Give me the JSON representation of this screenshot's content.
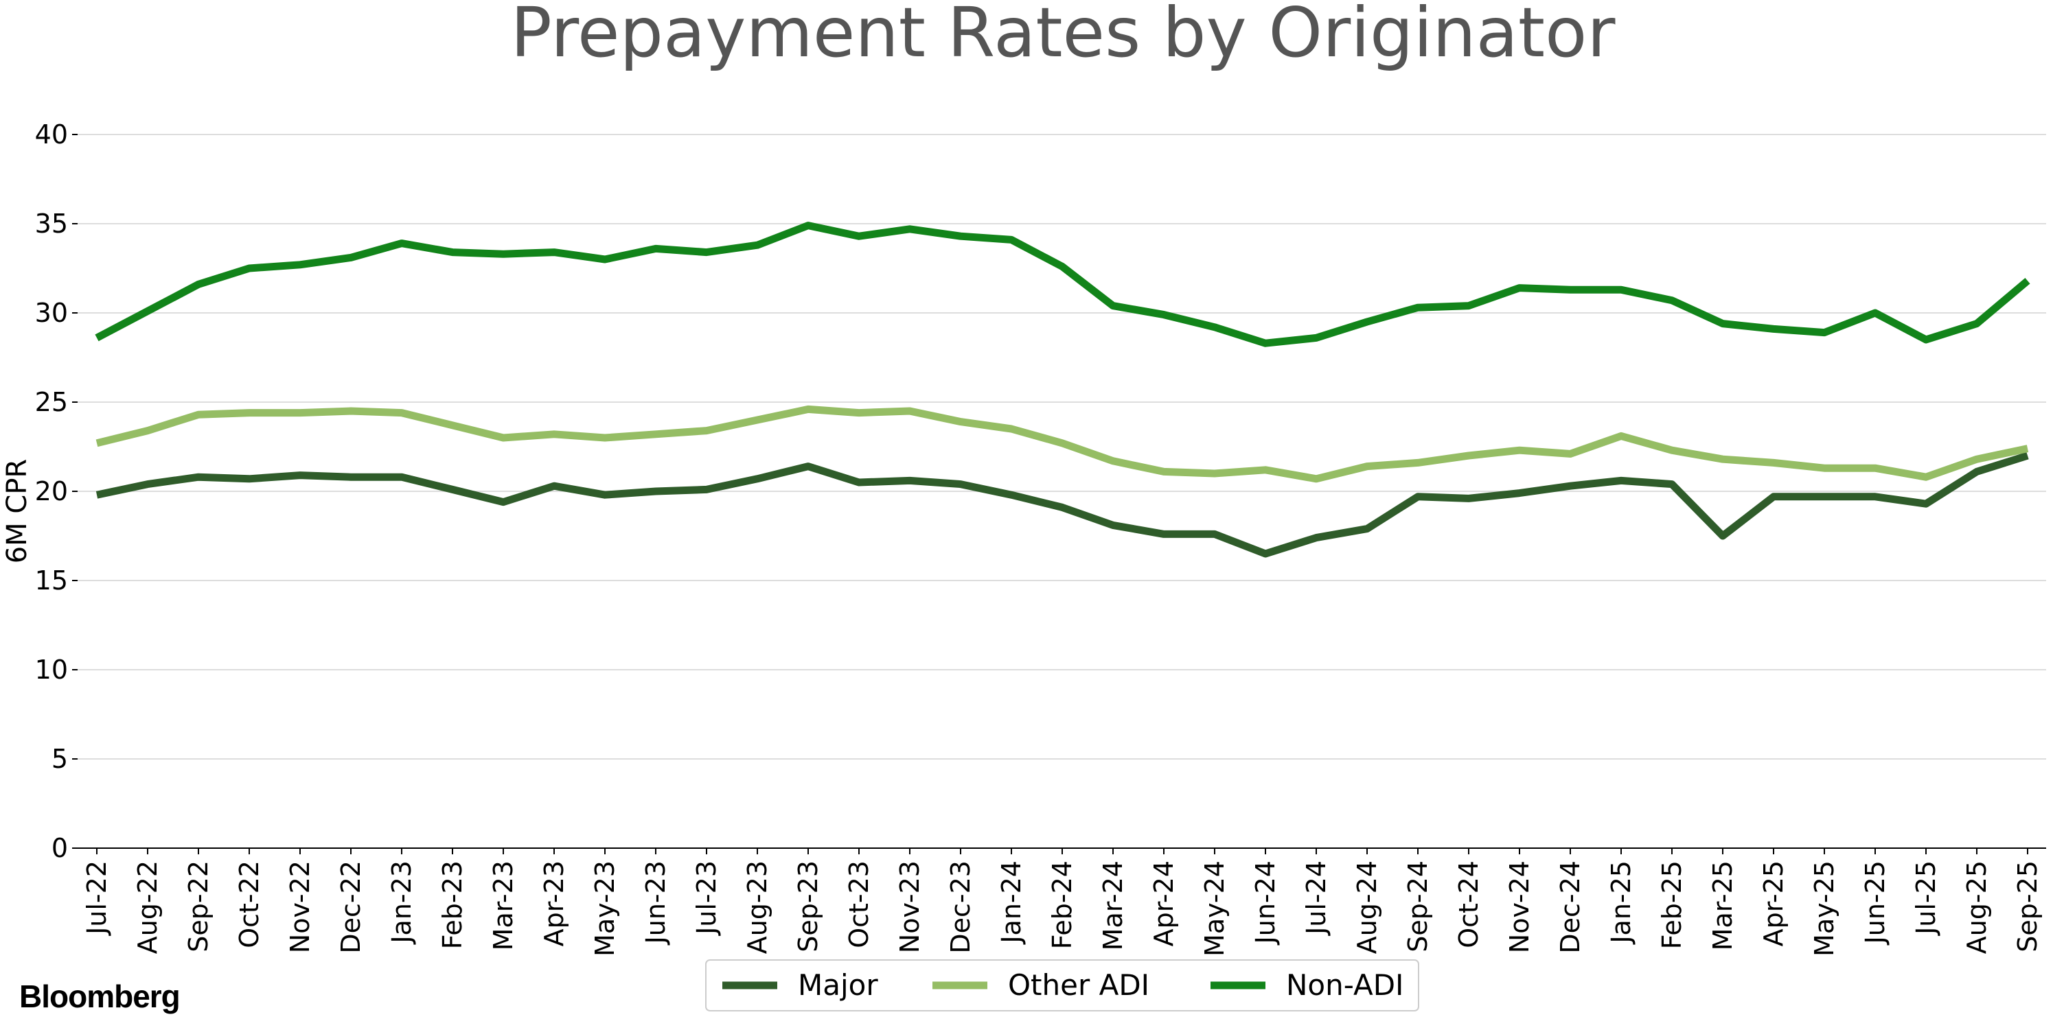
{
  "brand": {
    "name": "Bloomberg"
  },
  "chart_data": {
    "type": "line",
    "title": "Prepayment Rates by Originator",
    "xlabel": "",
    "ylabel": "6M CPR",
    "ylim": [
      0,
      40
    ],
    "yticks": [
      0,
      5,
      10,
      15,
      20,
      25,
      30,
      35,
      40
    ],
    "grid": true,
    "legend_position": "bottom-center",
    "categories": [
      "Jul-22",
      "Aug-22",
      "Sep-22",
      "Oct-22",
      "Nov-22",
      "Dec-22",
      "Jan-23",
      "Feb-23",
      "Mar-23",
      "Apr-23",
      "May-23",
      "Jun-23",
      "Jul-23",
      "Aug-23",
      "Sep-23",
      "Oct-23",
      "Nov-23",
      "Dec-23",
      "Jan-24",
      "Feb-24",
      "Mar-24",
      "Apr-24",
      "May-24",
      "Jun-24",
      "Jul-24",
      "Aug-24",
      "Sep-24",
      "Oct-24",
      "Nov-24",
      "Dec-24",
      "Jan-25",
      "Feb-25",
      "Mar-25",
      "Apr-25",
      "May-25",
      "Jun-25",
      "Jul-25",
      "Aug-25",
      "Sep-25"
    ],
    "series": [
      {
        "name": "Major",
        "color": "#2f5c2a",
        "values": [
          19.8,
          20.4,
          20.8,
          20.7,
          20.9,
          20.8,
          20.8,
          20.1,
          19.4,
          20.3,
          19.8,
          20.0,
          20.1,
          20.7,
          21.4,
          20.5,
          20.6,
          20.4,
          19.8,
          19.1,
          18.1,
          17.6,
          17.6,
          16.5,
          17.4,
          17.9,
          19.7,
          19.6,
          19.9,
          20.3,
          20.6,
          20.4,
          17.5,
          19.7,
          19.7,
          19.7,
          19.3,
          21.1,
          22.0
        ]
      },
      {
        "name": "Other ADI",
        "color": "#95bd64",
        "values": [
          22.7,
          23.4,
          24.3,
          24.4,
          24.4,
          24.5,
          24.4,
          23.7,
          23.0,
          23.2,
          23.0,
          23.2,
          23.4,
          24.0,
          24.6,
          24.4,
          24.5,
          23.9,
          23.5,
          22.7,
          21.7,
          21.1,
          21.0,
          21.2,
          20.7,
          21.4,
          21.6,
          22.0,
          22.3,
          22.1,
          23.1,
          22.3,
          21.8,
          21.6,
          21.3,
          21.3,
          20.8,
          21.8,
          22.4
        ]
      },
      {
        "name": "Non-ADI",
        "color": "#12841a",
        "values": [
          28.6,
          30.1,
          31.6,
          32.5,
          32.7,
          33.1,
          33.9,
          33.4,
          33.3,
          33.4,
          33.0,
          33.6,
          33.4,
          33.8,
          34.9,
          34.3,
          34.7,
          34.3,
          34.1,
          32.6,
          30.4,
          29.9,
          29.2,
          28.3,
          28.6,
          29.5,
          30.3,
          30.4,
          31.4,
          31.3,
          31.3,
          30.7,
          29.4,
          29.1,
          28.9,
          30.0,
          28.5,
          29.4,
          31.8
        ]
      }
    ]
  }
}
